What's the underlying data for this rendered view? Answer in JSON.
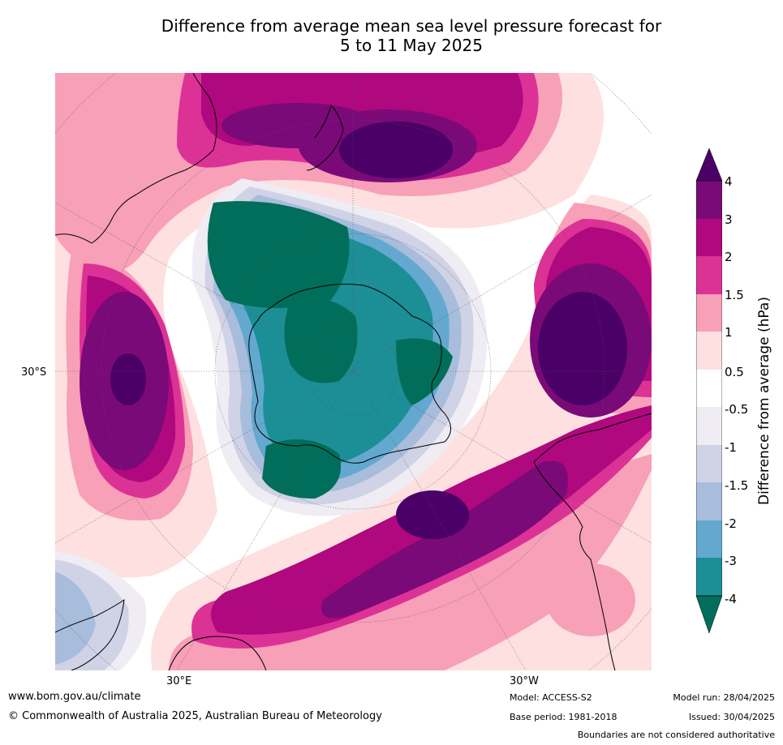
{
  "title_line1": "Difference from average mean sea level pressure forecast for",
  "title_line2": "5 to 11 May 2025",
  "map": {
    "lat_label": "30°S",
    "lon_labels": [
      "30°E",
      "30°W"
    ]
  },
  "colorbar": {
    "title": "Difference from average (hPa)",
    "ticks": [
      "4",
      "3",
      "2",
      "1.5",
      "1",
      "0.5",
      "-0.5",
      "-1",
      "-1.5",
      "-2",
      "-3",
      "-4"
    ],
    "colors": {
      "above_4": "#4a0066",
      "3_to_4": "#7a0a78",
      "2_to_3": "#b0087f",
      "1.5_to_2": "#dc3296",
      "1_to_1.5": "#f7a0b8",
      "0.5_to_1": "#fde0df",
      "neutral": "#ffffff",
      "-1_to_-0.5": "#f0ecf4",
      "-1.5_to_-1": "#d0d2e6",
      "-2_to_-1.5": "#a8bcdc",
      "-3_to_-2": "#63a8cf",
      "-4_to_-3": "#1c8e96",
      "below_-4": "#006e5a"
    }
  },
  "footer": {
    "website": "www.bom.gov.au/climate",
    "copyright": "© Commonwealth of Australia 2025, Australian Bureau of Meteorology",
    "model": "Model: ACCESS-S2",
    "base_period": "Base period: 1981-2018",
    "model_run": "Model run: 28/04/2025",
    "issued": "Issued: 30/04/2025",
    "disclaimer": "Boundaries are not considered authoritative"
  }
}
